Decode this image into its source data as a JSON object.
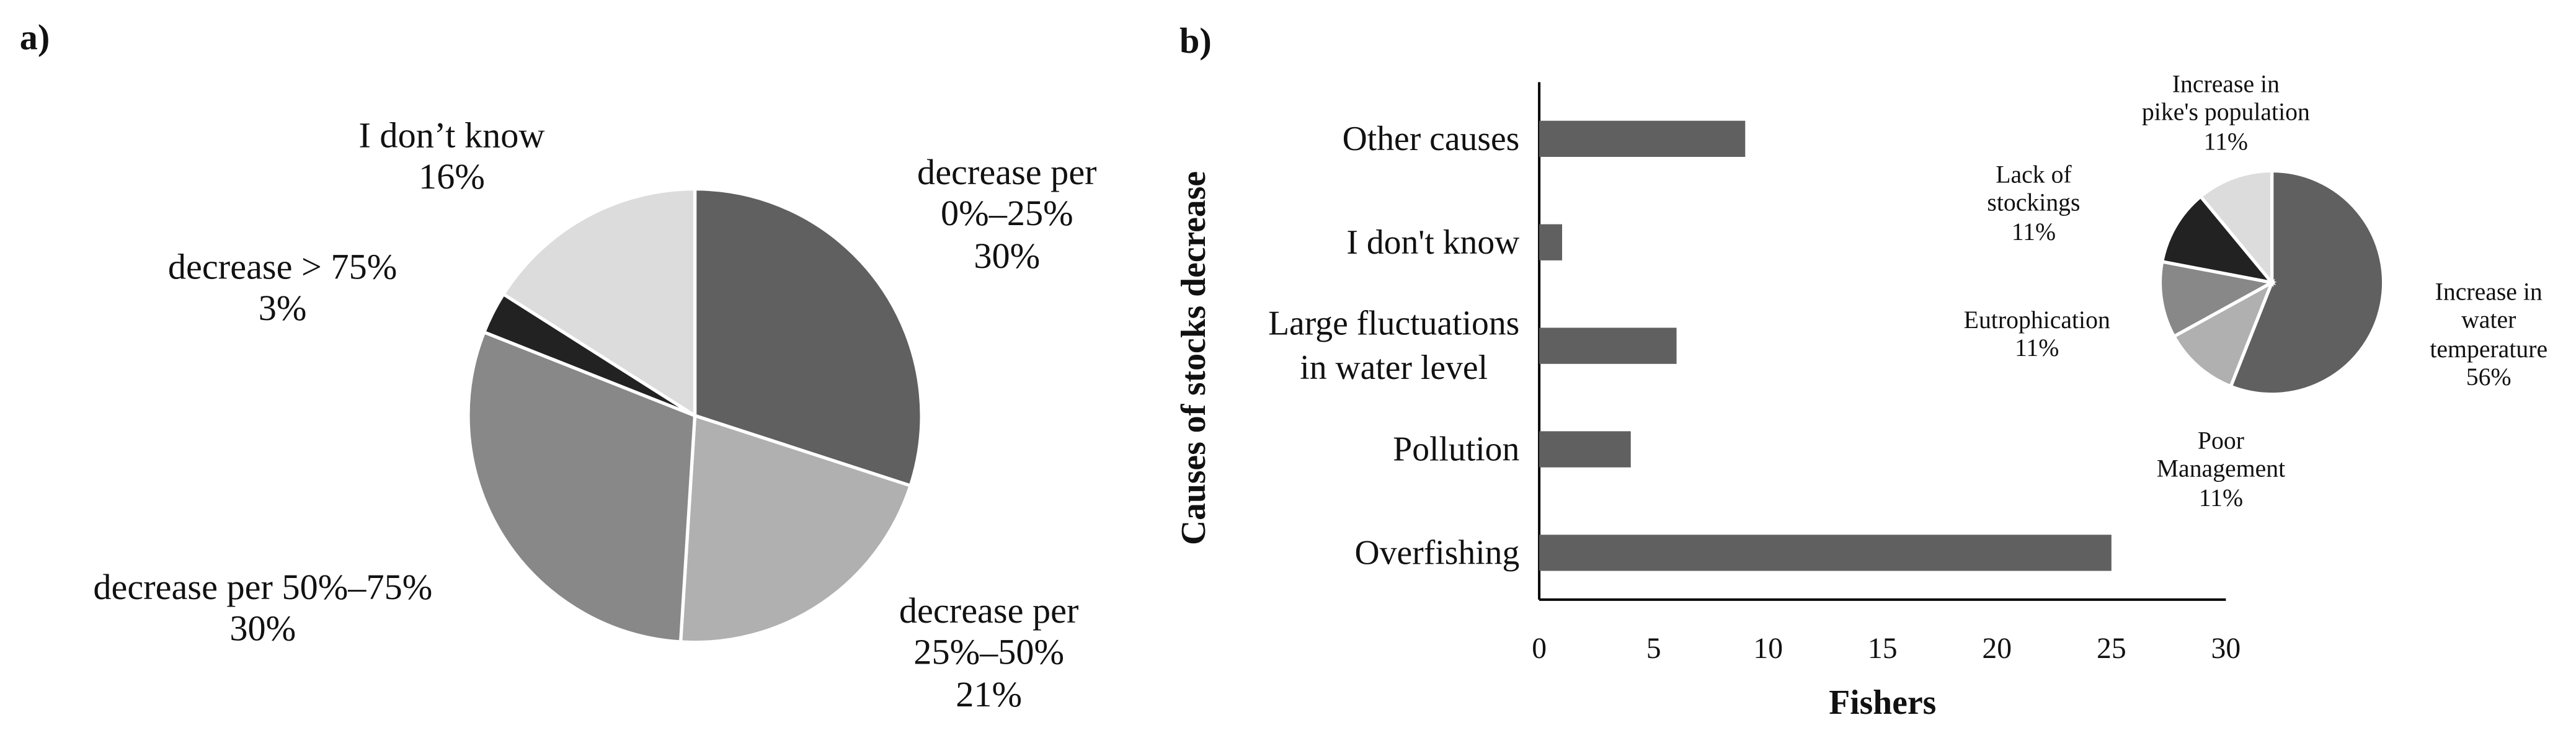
{
  "chart_data": [
    {
      "type": "pie",
      "panel_label": "a)",
      "categories": [
        "decrease per\n0%–25%",
        "decrease per\n25%–50%",
        "decrease per 50%–75%",
        "decrease > 75%",
        "I don’t know"
      ],
      "values": [
        30,
        21,
        30,
        3,
        16
      ],
      "value_labels": [
        "30%",
        "21%",
        "30%",
        "3%",
        "16%"
      ],
      "colors": [
        "#606060",
        "#b0b0b0",
        "#888888",
        "#222222",
        "#dcdcdc"
      ]
    },
    {
      "type": "bar",
      "panel_label": "b)",
      "orientation": "horizontal",
      "categories": [
        "Other causes",
        "I don't know",
        "Large fluctuations\nin water level",
        "Pollution",
        "Overfishing"
      ],
      "values": [
        9,
        1,
        6,
        4,
        25
      ],
      "color": "#606060",
      "xlim": [
        0,
        30
      ],
      "xticks": [
        0,
        5,
        10,
        15,
        20,
        25,
        30
      ],
      "x_label": "Fishers",
      "y_label": "Causes of stocks decrease",
      "grid": false
    },
    {
      "type": "pie",
      "categories": [
        "Increase in\nwater\ntemperature",
        "Poor\nManagement",
        "Eutrophication",
        "Lack of\nstockings",
        "Increase in\npike's population"
      ],
      "values": [
        56,
        11,
        11,
        11,
        11
      ],
      "value_labels": [
        "56%",
        "11%",
        "11%",
        "11%",
        "11%"
      ],
      "colors": [
        "#606060",
        "#b0b0b0",
        "#888888",
        "#222222",
        "#dcdcdc"
      ]
    }
  ]
}
